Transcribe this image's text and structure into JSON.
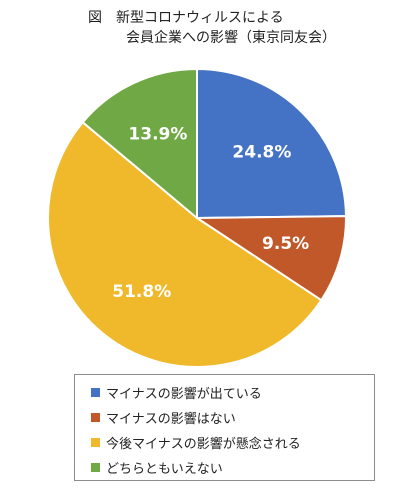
{
  "title": {
    "line1": "図　新型コロナウィルスによる",
    "line2": "会員企業への影響（東京同友会）"
  },
  "chart_data": {
    "type": "pie",
    "categories": [
      "マイナスの影響が出ている",
      "マイナスの影響はない",
      "今後マイナスの影響が懸念される",
      "どちらともいえない"
    ],
    "values": [
      24.8,
      9.5,
      51.8,
      13.9
    ],
    "labels": [
      "24.8%",
      "9.5%",
      "51.8%",
      "13.9%"
    ],
    "colors": [
      "#4472c4",
      "#c0582a",
      "#f0b92c",
      "#6fa844"
    ],
    "legend_position": "bottom"
  }
}
